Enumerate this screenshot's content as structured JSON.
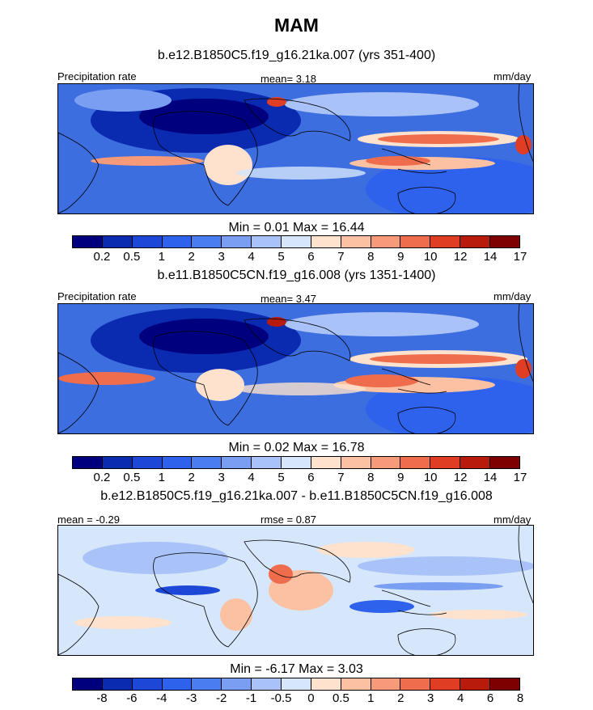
{
  "figure": {
    "title": "MAM"
  },
  "chart_data": [
    {
      "type": "heatmap",
      "title": "b.e12.B1850C5.f19_g16.21ka.007 (yrs 351-400)",
      "left_label": "Precipitation rate",
      "stat_text": "mean=   3.18",
      "units": "mm/day",
      "minmax_text": "Min =   0.01 Max =  16.44",
      "min": 0.01,
      "max": 16.44,
      "mean": 3.18,
      "colorbar_levels": [
        "0.2",
        "0.5",
        "1",
        "2",
        "3",
        "4",
        "5",
        "6",
        "7",
        "8",
        "9",
        "10",
        "12",
        "14",
        "17"
      ],
      "colors": [
        "#00007f",
        "#0a2ab0",
        "#1d47d6",
        "#2f62ec",
        "#4a7df0",
        "#7a9ff2",
        "#a9c2f7",
        "#d6e6fb",
        "#fee2ce",
        "#fbc1a2",
        "#f79a7a",
        "#ef6d4c",
        "#e03e24",
        "#b81b0c",
        "#7f0000"
      ]
    },
    {
      "type": "heatmap",
      "title": "b.e11.B1850C5CN.f19_g16.008 (yrs 1351-1400)",
      "left_label": "Precipitation rate",
      "stat_text": "mean=   3.47",
      "units": "mm/day",
      "minmax_text": "Min =   0.02 Max =  16.78",
      "min": 0.02,
      "max": 16.78,
      "mean": 3.47,
      "colorbar_levels": [
        "0.2",
        "0.5",
        "1",
        "2",
        "3",
        "4",
        "5",
        "6",
        "7",
        "8",
        "9",
        "10",
        "12",
        "14",
        "17"
      ],
      "colors": [
        "#00007f",
        "#0a2ab0",
        "#1d47d6",
        "#2f62ec",
        "#4a7df0",
        "#7a9ff2",
        "#a9c2f7",
        "#d6e6fb",
        "#fee2ce",
        "#fbc1a2",
        "#f79a7a",
        "#ef6d4c",
        "#e03e24",
        "#b81b0c",
        "#7f0000"
      ]
    },
    {
      "type": "heatmap",
      "title": "b.e12.B1850C5.f19_g16.21ka.007 - b.e11.B1850C5CN.f19_g16.008",
      "left_label": "mean =  -0.29",
      "stat_text": "rmse =   0.87",
      "units": "mm/day",
      "minmax_text": "Min =  -6.17 Max =   3.03",
      "min": -6.17,
      "max": 3.03,
      "mean": -0.29,
      "rmse": 0.87,
      "colorbar_levels": [
        "-8",
        "-6",
        "-4",
        "-3",
        "-2",
        "-1",
        "-0.5",
        "0",
        "0.5",
        "1",
        "2",
        "3",
        "4",
        "6",
        "8"
      ],
      "colors": [
        "#00007f",
        "#0a2ab0",
        "#1d47d6",
        "#2f62ec",
        "#4a7df0",
        "#7a9ff2",
        "#a9c2f7",
        "#d6e6fb",
        "#fee2ce",
        "#fbc1a2",
        "#f79a7a",
        "#ef6d4c",
        "#e03e24",
        "#b81b0c",
        "#7f0000"
      ]
    }
  ]
}
